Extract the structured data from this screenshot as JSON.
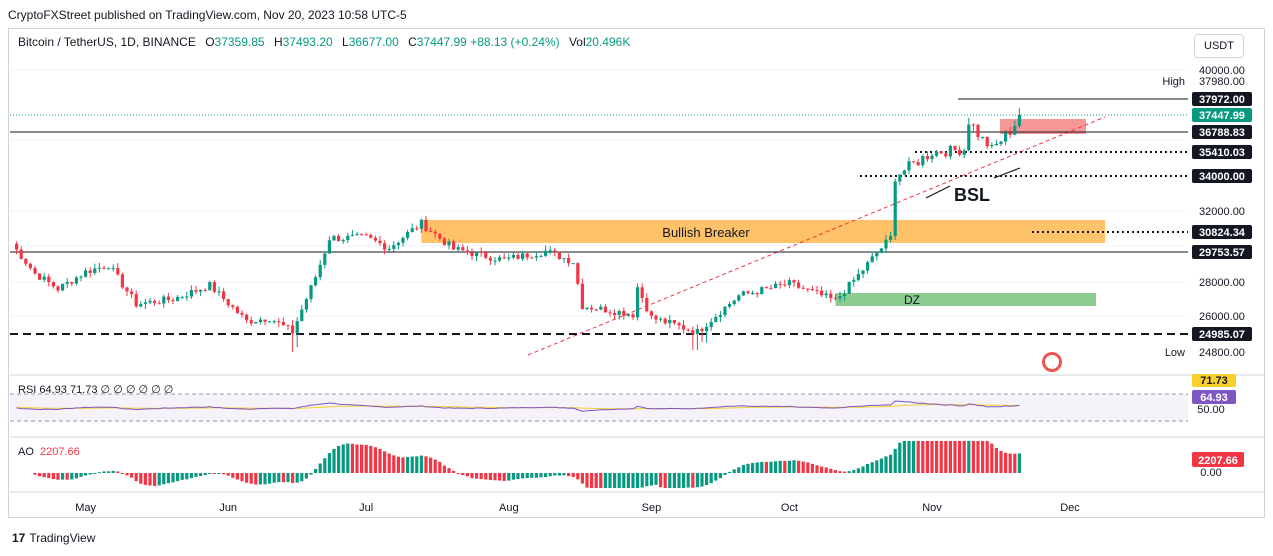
{
  "header": {
    "caption": "CryptoFXStreet published on TradingView.com, Nov 20, 2023 10:58 UTC-5",
    "symbol": "Bitcoin / TetherUS, 1D, BINANCE",
    "o_label": "O",
    "o": "37359.85",
    "h_label": "H",
    "h": "37493.20",
    "l_label": "L",
    "l": "36677.00",
    "c_label": "C",
    "c": "37447.99",
    "change": "+88.13 (+0.24%)",
    "vol_label": "Vol",
    "vol": "20.496K",
    "currency_button": "USDT"
  },
  "footer": {
    "brand": "TradingView"
  },
  "chart_data": [
    {
      "type": "candlestick",
      "panel": "price",
      "y_ticks": [
        "40000.00",
        "32000.00",
        "28000.00",
        "26000.00"
      ],
      "x_ticks": [
        "May",
        "Jun",
        "Jul",
        "Aug",
        "Sep",
        "Oct",
        "Nov",
        "Dec"
      ],
      "anchors": [
        [
          "2023-04-15",
          30200
        ],
        [
          "2023-04-20",
          28500
        ],
        [
          "2023-04-25",
          27600
        ],
        [
          "2023-05-01",
          28600
        ],
        [
          "2023-05-06",
          29000
        ],
        [
          "2023-05-12",
          26700
        ],
        [
          "2023-05-20",
          27000
        ],
        [
          "2023-05-28",
          27800
        ],
        [
          "2023-06-05",
          25700
        ],
        [
          "2023-06-10",
          25900
        ],
        [
          "2023-06-15",
          25100
        ],
        [
          "2023-06-20",
          28300
        ],
        [
          "2023-06-23",
          30500
        ],
        [
          "2023-07-01",
          30500
        ],
        [
          "2023-07-06",
          30000
        ],
        [
          "2023-07-13",
          31300
        ],
        [
          "2023-07-20",
          29900
        ],
        [
          "2023-07-31",
          29300
        ],
        [
          "2023-08-09",
          29800
        ],
        [
          "2023-08-15",
          29200
        ],
        [
          "2023-08-17",
          26600
        ],
        [
          "2023-08-28",
          26100
        ],
        [
          "2023-08-29",
          27700
        ],
        [
          "2023-09-01",
          25900
        ],
        [
          "2023-09-11",
          25100
        ],
        [
          "2023-09-20",
          27200
        ],
        [
          "2023-10-01",
          27900
        ],
        [
          "2023-10-11",
          26900
        ],
        [
          "2023-10-16",
          28400
        ],
        [
          "2023-10-20",
          29700
        ],
        [
          "2023-10-23",
          30500
        ],
        [
          "2023-10-24",
          34000
        ],
        [
          "2023-11-01",
          35400
        ],
        [
          "2023-11-08",
          35600
        ],
        [
          "2023-11-09",
          37300
        ],
        [
          "2023-11-14",
          35600
        ],
        [
          "2023-11-16",
          36200
        ],
        [
          "2023-11-20",
          37448
        ]
      ],
      "levels": [
        {
          "label": "High",
          "value": "37980.00",
          "color": "#131722"
        },
        {
          "label": "",
          "value": "37972.00",
          "color": "#131722"
        },
        {
          "label": "",
          "value": "37447.99",
          "color": "#089981"
        },
        {
          "label": "",
          "value": "36788.83",
          "color": "#131722"
        },
        {
          "label": "",
          "value": "35410.03",
          "color": "#131722"
        },
        {
          "label": "",
          "value": "34000.00",
          "color": "#131722"
        },
        {
          "label": "",
          "value": "30824.34",
          "color": "#131722"
        },
        {
          "label": "",
          "value": "29753.57",
          "color": "#131722"
        },
        {
          "label": "",
          "value": "24985.07",
          "color": "#131722"
        },
        {
          "label": "Low",
          "value": "24800.00",
          "color": "#131722"
        }
      ],
      "zones": [
        {
          "label": "Bullish Breaker",
          "color": "#ffb74d"
        },
        {
          "label": "DZ",
          "color": "#81c784"
        },
        {
          "label": "",
          "color": "#ef5350"
        }
      ],
      "annotations": [
        "BSL"
      ],
      "colors": {
        "up": "#089981",
        "down": "#f23645"
      }
    },
    {
      "type": "line",
      "panel": "rsi",
      "name": "RSI",
      "values_shown": [
        "64.93",
        "71.73"
      ],
      "legend_text": "RSI 64.93 71.73 ∅ ∅ ∅ ∅ ∅ ∅",
      "y_ticks": [
        "50.00"
      ],
      "colors": {
        "rsi": "#7e57c2",
        "ma": "#f7d02c"
      }
    },
    {
      "type": "bar",
      "panel": "ao",
      "name": "AO",
      "value_shown": "2207.66",
      "y_ticks": [
        "0.00"
      ],
      "colors": {
        "up": "#089981",
        "down": "#f23645"
      }
    }
  ]
}
